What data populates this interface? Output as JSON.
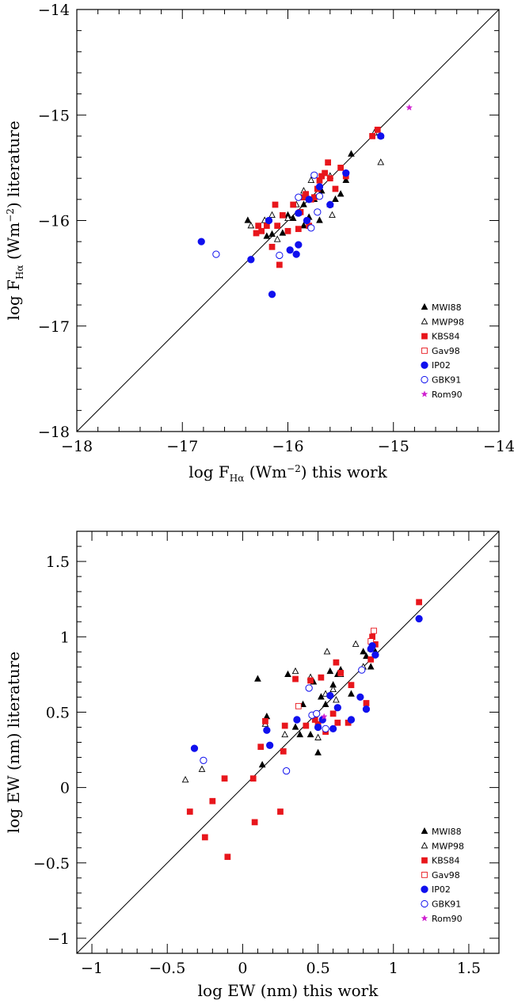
{
  "chart_data": [
    {
      "type": "scatter",
      "xlabel_parts": [
        "log F",
        "Hα",
        " (Wm",
        "−2",
        ") this work"
      ],
      "ylabel_parts": [
        "log F",
        "Hα",
        " (Wm",
        "−2",
        ") literature"
      ],
      "xlim": [
        -18,
        -14
      ],
      "ylim": [
        -18,
        -14
      ],
      "xticks": [
        -18,
        -17,
        -16,
        -15,
        -14
      ],
      "yticks": [
        -18,
        -17,
        -16,
        -15,
        -14
      ],
      "xtick_labels": [
        "−18",
        "−17",
        "−16",
        "−15",
        "−14"
      ],
      "ytick_labels": [
        "−18",
        "−17",
        "−16",
        "−15",
        "−14"
      ],
      "diagonal": true,
      "legend_position": "bottom-right",
      "series": [
        {
          "name": "MWI88",
          "marker": "triangle-filled",
          "color": "#000000",
          "points": [
            [
              -16.38,
              -16.0
            ],
            [
              -16.15,
              -16.13
            ],
            [
              -16.05,
              -16.12
            ],
            [
              -16.0,
              -15.95
            ],
            [
              -15.95,
              -15.98
            ],
            [
              -15.9,
              -15.93
            ],
            [
              -15.85,
              -15.85
            ],
            [
              -15.8,
              -15.97
            ],
            [
              -15.75,
              -15.8
            ],
            [
              -15.68,
              -15.72
            ],
            [
              -15.6,
              -15.85
            ],
            [
              -15.55,
              -15.8
            ],
            [
              -15.5,
              -15.75
            ],
            [
              -15.45,
              -15.62
            ],
            [
              -15.4,
              -15.37
            ],
            [
              -15.12,
              -15.2
            ],
            [
              -15.7,
              -16.0
            ],
            [
              -15.85,
              -16.05
            ],
            [
              -16.2,
              -16.15
            ]
          ]
        },
        {
          "name": "MWP98",
          "marker": "triangle-open",
          "color": "#000000",
          "points": [
            [
              -16.35,
              -16.05
            ],
            [
              -16.22,
              -16.0
            ],
            [
              -16.1,
              -16.18
            ],
            [
              -16.15,
              -15.95
            ],
            [
              -15.92,
              -15.85
            ],
            [
              -15.85,
              -15.72
            ],
            [
              -15.78,
              -15.62
            ],
            [
              -15.6,
              -15.58
            ],
            [
              -15.58,
              -15.95
            ],
            [
              -15.18,
              -15.17
            ],
            [
              -15.12,
              -15.45
            ],
            [
              -16.0,
              -15.98
            ]
          ]
        },
        {
          "name": "KBS84",
          "marker": "square-filled",
          "color": "#e8161c",
          "points": [
            [
              -16.3,
              -16.12
            ],
            [
              -16.28,
              -16.05
            ],
            [
              -16.25,
              -16.1
            ],
            [
              -16.2,
              -16.05
            ],
            [
              -16.15,
              -16.25
            ],
            [
              -16.12,
              -15.85
            ],
            [
              -16.1,
              -16.05
            ],
            [
              -16.08,
              -16.42
            ],
            [
              -16.05,
              -15.95
            ],
            [
              -16.0,
              -16.1
            ],
            [
              -15.95,
              -15.85
            ],
            [
              -15.9,
              -16.08
            ],
            [
              -15.88,
              -15.92
            ],
            [
              -15.85,
              -15.78
            ],
            [
              -15.83,
              -15.75
            ],
            [
              -15.8,
              -16.05
            ],
            [
              -15.78,
              -15.8
            ],
            [
              -15.75,
              -15.78
            ],
            [
              -15.72,
              -15.7
            ],
            [
              -15.7,
              -15.62
            ],
            [
              -15.68,
              -15.58
            ],
            [
              -15.65,
              -15.55
            ],
            [
              -15.62,
              -15.45
            ],
            [
              -15.6,
              -15.6
            ],
            [
              -15.55,
              -15.7
            ],
            [
              -15.5,
              -15.5
            ],
            [
              -15.45,
              -15.58
            ],
            [
              -15.2,
              -15.2
            ],
            [
              -15.15,
              -15.14
            ]
          ]
        },
        {
          "name": "Gav98",
          "marker": "square-open",
          "color": "#e8161c",
          "points": []
        },
        {
          "name": "IP02",
          "marker": "circle-filled",
          "color": "#1010ee",
          "points": [
            [
              -16.82,
              -16.2
            ],
            [
              -16.35,
              -16.37
            ],
            [
              -16.18,
              -16.0
            ],
            [
              -16.15,
              -16.7
            ],
            [
              -15.98,
              -16.28
            ],
            [
              -15.92,
              -16.32
            ],
            [
              -15.9,
              -16.23
            ],
            [
              -15.9,
              -15.93
            ],
            [
              -15.82,
              -16.0
            ],
            [
              -15.8,
              -15.8
            ],
            [
              -15.7,
              -15.68
            ],
            [
              -15.6,
              -15.85
            ],
            [
              -15.45,
              -15.55
            ],
            [
              -15.12,
              -15.2
            ]
          ]
        },
        {
          "name": "GBK91",
          "marker": "circle-open",
          "color": "#1010ee",
          "points": [
            [
              -16.68,
              -16.32
            ],
            [
              -16.08,
              -16.33
            ],
            [
              -15.9,
              -15.78
            ],
            [
              -15.78,
              -16.07
            ],
            [
              -15.75,
              -15.57
            ],
            [
              -15.72,
              -15.92
            ],
            [
              -15.7,
              -15.77
            ]
          ]
        },
        {
          "name": "Rom90",
          "marker": "star",
          "color": "#d020d0",
          "points": [
            [
              -14.85,
              -14.93
            ]
          ]
        }
      ]
    },
    {
      "type": "scatter",
      "xlabel_parts": [
        "log EW (nm) this work"
      ],
      "ylabel_parts": [
        "log EW (nm) literature"
      ],
      "xlim": [
        -1.1,
        1.7
      ],
      "ylim": [
        -1.1,
        1.7
      ],
      "xticks": [
        -1,
        -0.5,
        0,
        0.5,
        1,
        1.5
      ],
      "yticks": [
        -1,
        -0.5,
        0,
        0.5,
        1,
        1.5
      ],
      "xtick_labels": [
        "−1",
        "−0.5",
        "0",
        "0.5",
        "1",
        "1.5"
      ],
      "ytick_labels": [
        "−1",
        "−0.5",
        "0",
        "0.5",
        "1",
        "1.5"
      ],
      "diagonal": true,
      "legend_position": "bottom-right",
      "series": [
        {
          "name": "MWI88",
          "marker": "triangle-filled",
          "color": "#000000",
          "points": [
            [
              0.1,
              0.72
            ],
            [
              0.13,
              0.15
            ],
            [
              0.16,
              0.47
            ],
            [
              0.3,
              0.75
            ],
            [
              0.35,
              0.4
            ],
            [
              0.38,
              0.35
            ],
            [
              0.4,
              0.55
            ],
            [
              0.45,
              0.35
            ],
            [
              0.47,
              0.7
            ],
            [
              0.5,
              0.23
            ],
            [
              0.52,
              0.6
            ],
            [
              0.55,
              0.55
            ],
            [
              0.58,
              0.77
            ],
            [
              0.6,
              0.68
            ],
            [
              0.63,
              0.75
            ],
            [
              0.65,
              0.78
            ],
            [
              0.72,
              0.62
            ],
            [
              0.8,
              0.9
            ],
            [
              0.82,
              0.87
            ],
            [
              0.85,
              0.8
            ],
            [
              0.88,
              0.9
            ]
          ]
        },
        {
          "name": "MWP98",
          "marker": "triangle-open",
          "color": "#000000",
          "points": [
            [
              -0.38,
              0.05
            ],
            [
              -0.27,
              0.12
            ],
            [
              0.15,
              0.42
            ],
            [
              0.28,
              0.35
            ],
            [
              0.35,
              0.77
            ],
            [
              0.45,
              0.73
            ],
            [
              0.5,
              0.33
            ],
            [
              0.55,
              0.62
            ],
            [
              0.56,
              0.9
            ],
            [
              0.6,
              0.65
            ],
            [
              0.62,
              0.58
            ],
            [
              0.65,
              0.75
            ],
            [
              0.75,
              0.95
            ],
            [
              0.8,
              0.8
            ],
            [
              0.85,
              0.92
            ]
          ]
        },
        {
          "name": "KBS84",
          "marker": "square-filled",
          "color": "#e8161c",
          "points": [
            [
              -0.35,
              -0.16
            ],
            [
              -0.25,
              -0.33
            ],
            [
              -0.2,
              -0.09
            ],
            [
              -0.12,
              0.06
            ],
            [
              -0.1,
              -0.46
            ],
            [
              0.07,
              0.06
            ],
            [
              0.08,
              -0.23
            ],
            [
              0.12,
              0.27
            ],
            [
              0.15,
              0.44
            ],
            [
              0.25,
              -0.16
            ],
            [
              0.27,
              0.24
            ],
            [
              0.28,
              0.41
            ],
            [
              0.35,
              0.72
            ],
            [
              0.42,
              0.41
            ],
            [
              0.45,
              0.71
            ],
            [
              0.48,
              0.45
            ],
            [
              0.5,
              0.42
            ],
            [
              0.52,
              0.73
            ],
            [
              0.55,
              0.37
            ],
            [
              0.6,
              0.49
            ],
            [
              0.62,
              0.83
            ],
            [
              0.63,
              0.43
            ],
            [
              0.65,
              0.76
            ],
            [
              0.7,
              0.43
            ],
            [
              0.72,
              0.68
            ],
            [
              0.82,
              0.56
            ],
            [
              0.85,
              0.85
            ],
            [
              0.86,
              1.0
            ],
            [
              0.88,
              0.95
            ],
            [
              1.17,
              1.23
            ]
          ]
        },
        {
          "name": "Gav98",
          "marker": "square-open",
          "color": "#e8161c",
          "points": [
            [
              0.37,
              0.54
            ],
            [
              0.85,
              0.97
            ],
            [
              0.87,
              1.04
            ]
          ]
        },
        {
          "name": "IP02",
          "marker": "circle-filled",
          "color": "#1010ee",
          "points": [
            [
              -0.32,
              0.26
            ],
            [
              0.16,
              0.38
            ],
            [
              0.18,
              0.28
            ],
            [
              0.36,
              0.45
            ],
            [
              0.5,
              0.4
            ],
            [
              0.53,
              0.45
            ],
            [
              0.58,
              0.61
            ],
            [
              0.6,
              0.39
            ],
            [
              0.63,
              0.53
            ],
            [
              0.72,
              0.45
            ],
            [
              0.78,
              0.6
            ],
            [
              0.82,
              0.52
            ],
            [
              0.85,
              0.92
            ],
            [
              0.86,
              0.94
            ],
            [
              0.88,
              0.88
            ],
            [
              1.17,
              1.12
            ]
          ]
        },
        {
          "name": "GBK91",
          "marker": "circle-open",
          "color": "#1010ee",
          "points": [
            [
              -0.26,
              0.18
            ],
            [
              0.29,
              0.11
            ],
            [
              0.44,
              0.66
            ],
            [
              0.46,
              0.48
            ],
            [
              0.49,
              0.49
            ],
            [
              0.55,
              0.39
            ],
            [
              0.79,
              0.78
            ]
          ]
        },
        {
          "name": "Rom90",
          "marker": "star",
          "color": "#d020d0",
          "points": [
            [
              0.54,
              0.47
            ]
          ]
        }
      ]
    }
  ]
}
